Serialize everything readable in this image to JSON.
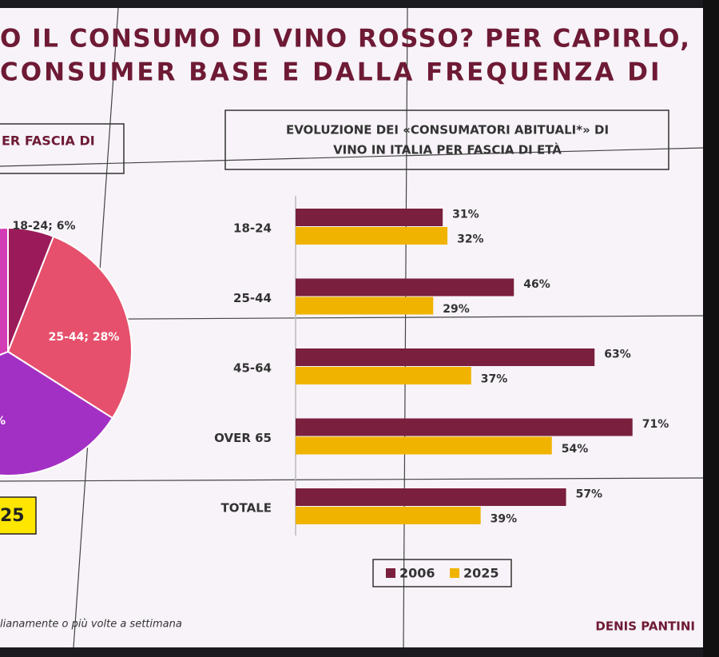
{
  "header": {
    "title_lines": [
      "O IL CONSUMO DI VINO ROSSO? PER CAPIRLO,",
      "CONSUMER BASE E DALLA FREQUENZA DI"
    ]
  },
  "left_panel": {
    "heading": "ER FASCIA DI",
    "badge": "25"
  },
  "footnote": "lianamente o più volte a settimana",
  "author": "DENIS PANTINI",
  "chart_data": [
    {
      "type": "pie",
      "categories": [
        "18-24",
        "25-44",
        null,
        null
      ],
      "values": [
        6,
        28,
        35,
        31
      ],
      "value_labels": [
        "18-24; 6%",
        "25-44; 28%",
        "%",
        null
      ],
      "colors": [
        "#9b1b5a",
        "#e6506c",
        "#a330c4",
        "#d23cb4"
      ]
    },
    {
      "type": "bar",
      "orientation": "horizontal",
      "title_lines": [
        "EVOLUZIONE DEI «CONSUMATORI ABITUALI*» DI",
        "VINO IN ITALIA PER FASCIA DI ETÀ"
      ],
      "categories": [
        "18-24",
        "25-44",
        "45-64",
        "OVER 65",
        "TOTALE"
      ],
      "series": [
        {
          "name": "2006",
          "color": "#7a1f3d",
          "values": [
            31,
            46,
            63,
            71,
            57
          ],
          "value_labels": [
            "31%",
            "46%",
            "63%",
            "71%",
            "57%"
          ]
        },
        {
          "name": "2025",
          "color": "#f0b400",
          "values": [
            32,
            29,
            37,
            54,
            39
          ],
          "value_labels": [
            "32%",
            "29%",
            "37%",
            "54%",
            "39%"
          ]
        }
      ],
      "legend": "bottom"
    }
  ]
}
